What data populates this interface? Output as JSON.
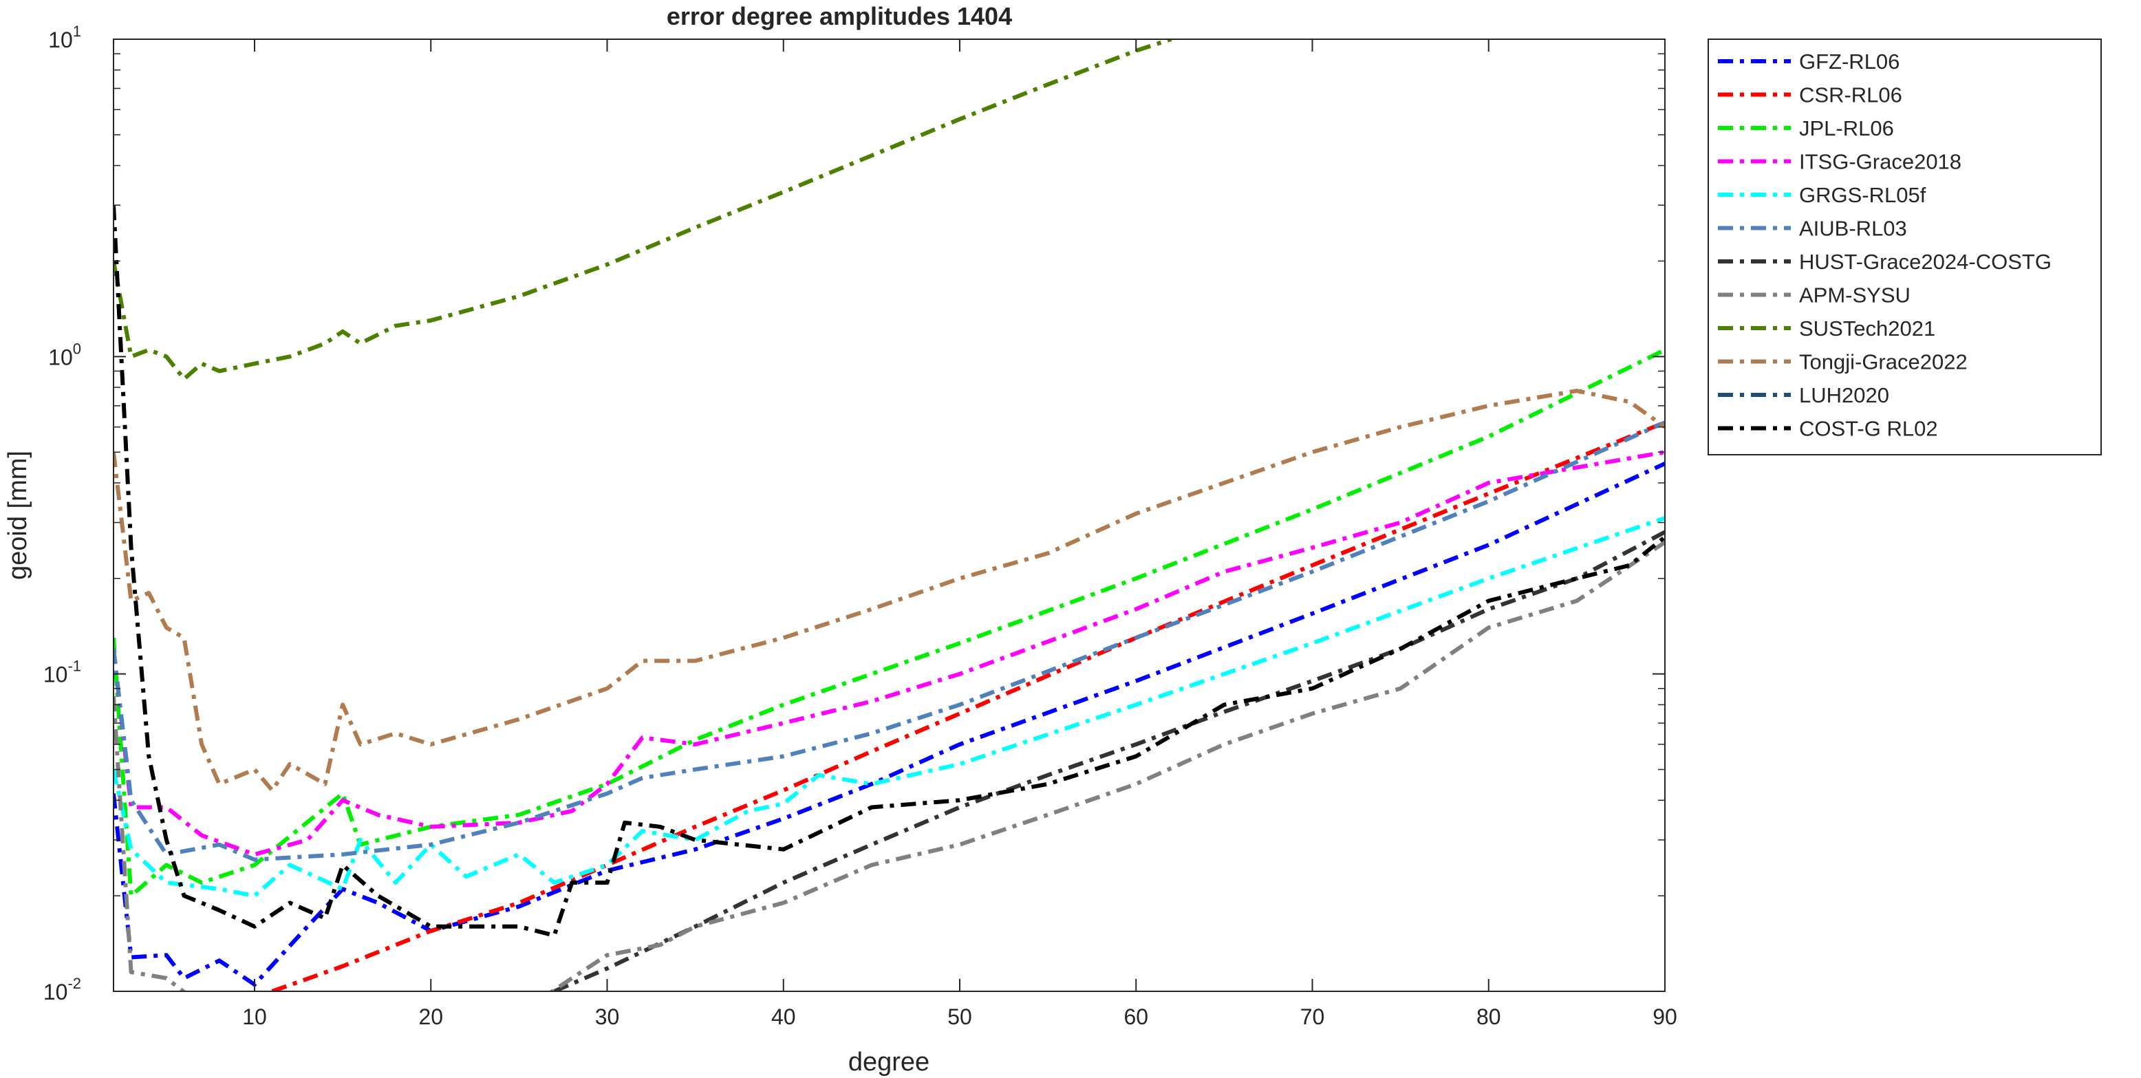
{
  "chart_data": {
    "type": "line",
    "title": "error degree amplitudes 1404",
    "xlabel": "degree",
    "ylabel": "geoid [mm]",
    "xlim": [
      2,
      90
    ],
    "ylim": [
      0.01,
      10
    ],
    "yscale": "log",
    "grid": false,
    "legend_position": "outside-right-top",
    "x_ticks": [
      10,
      20,
      30,
      40,
      50,
      60,
      70,
      80,
      90
    ],
    "y_ticks": [
      {
        "value": 0.01,
        "base": "10",
        "exp": "-2"
      },
      {
        "value": 0.1,
        "base": "10",
        "exp": "-1"
      },
      {
        "value": 1,
        "base": "10",
        "exp": "0"
      },
      {
        "value": 10,
        "base": "10",
        "exp": "1"
      }
    ],
    "series": [
      {
        "name": "GFZ-RL06",
        "color": "#0000ff",
        "dash": "dashdot",
        "points": [
          [
            2,
            0.042
          ],
          [
            3,
            0.0128
          ],
          [
            5,
            0.013
          ],
          [
            6,
            0.011
          ],
          [
            8,
            0.0125
          ],
          [
            10,
            0.0105
          ],
          [
            13,
            0.016
          ],
          [
            15,
            0.021
          ],
          [
            17,
            0.019
          ],
          [
            20,
            0.0155
          ],
          [
            25,
            0.0185
          ],
          [
            30,
            0.024
          ],
          [
            35,
            0.028
          ],
          [
            40,
            0.035
          ],
          [
            45,
            0.045
          ],
          [
            50,
            0.06
          ],
          [
            60,
            0.095
          ],
          [
            70,
            0.155
          ],
          [
            80,
            0.255
          ],
          [
            90,
            0.46
          ]
        ]
      },
      {
        "name": "CSR-RL06",
        "color": "#ff0000",
        "dash": "dashdot",
        "points": [
          [
            11,
            0.01
          ],
          [
            15,
            0.012
          ],
          [
            20,
            0.0155
          ],
          [
            25,
            0.019
          ],
          [
            30,
            0.025
          ],
          [
            35,
            0.033
          ],
          [
            40,
            0.043
          ],
          [
            45,
            0.057
          ],
          [
            50,
            0.075
          ],
          [
            60,
            0.13
          ],
          [
            70,
            0.22
          ],
          [
            80,
            0.37
          ],
          [
            90,
            0.62
          ]
        ]
      },
      {
        "name": "JPL-RL06",
        "color": "#00ee00",
        "dash": "dashdot",
        "points": [
          [
            2,
            0.13
          ],
          [
            3,
            0.02
          ],
          [
            5,
            0.025
          ],
          [
            7,
            0.022
          ],
          [
            10,
            0.025
          ],
          [
            15,
            0.042
          ],
          [
            16,
            0.029
          ],
          [
            20,
            0.033
          ],
          [
            25,
            0.036
          ],
          [
            30,
            0.045
          ],
          [
            35,
            0.062
          ],
          [
            40,
            0.08
          ],
          [
            45,
            0.1
          ],
          [
            50,
            0.125
          ],
          [
            60,
            0.2
          ],
          [
            70,
            0.33
          ],
          [
            80,
            0.56
          ],
          [
            90,
            1.05
          ]
        ]
      },
      {
        "name": "ITSG-Grace2018",
        "color": "#ff00ff",
        "dash": "dashdot",
        "points": [
          [
            2,
            0.12
          ],
          [
            3,
            0.038
          ],
          [
            5,
            0.038
          ],
          [
            7,
            0.031
          ],
          [
            10,
            0.027
          ],
          [
            13,
            0.03
          ],
          [
            15,
            0.04
          ],
          [
            17,
            0.036
          ],
          [
            20,
            0.033
          ],
          [
            25,
            0.034
          ],
          [
            28,
            0.037
          ],
          [
            30,
            0.045
          ],
          [
            32,
            0.063
          ],
          [
            35,
            0.06
          ],
          [
            40,
            0.07
          ],
          [
            45,
            0.082
          ],
          [
            50,
            0.1
          ],
          [
            60,
            0.16
          ],
          [
            65,
            0.21
          ],
          [
            70,
            0.25
          ],
          [
            75,
            0.3
          ],
          [
            80,
            0.4
          ],
          [
            90,
            0.5
          ]
        ]
      },
      {
        "name": "GRGS-RL05f",
        "color": "#00ffff",
        "dash": "dashdot",
        "points": [
          [
            2,
            0.05
          ],
          [
            3,
            0.028
          ],
          [
            5,
            0.022
          ],
          [
            8,
            0.021
          ],
          [
            10,
            0.02
          ],
          [
            12,
            0.025
          ],
          [
            15,
            0.021
          ],
          [
            16,
            0.03
          ],
          [
            18,
            0.022
          ],
          [
            20,
            0.029
          ],
          [
            22,
            0.023
          ],
          [
            25,
            0.027
          ],
          [
            27,
            0.022
          ],
          [
            30,
            0.025
          ],
          [
            32,
            0.032
          ],
          [
            35,
            0.03
          ],
          [
            38,
            0.037
          ],
          [
            40,
            0.039
          ],
          [
            42,
            0.048
          ],
          [
            45,
            0.045
          ],
          [
            50,
            0.052
          ],
          [
            60,
            0.08
          ],
          [
            70,
            0.125
          ],
          [
            80,
            0.2
          ],
          [
            90,
            0.31
          ]
        ]
      },
      {
        "name": "AIUB-RL03",
        "color": "#4f81bd",
        "dash": "dashdot",
        "points": [
          [
            2,
            0.12
          ],
          [
            3,
            0.04
          ],
          [
            5,
            0.027
          ],
          [
            8,
            0.029
          ],
          [
            10,
            0.026
          ],
          [
            15,
            0.027
          ],
          [
            20,
            0.029
          ],
          [
            25,
            0.034
          ],
          [
            30,
            0.042
          ],
          [
            32,
            0.047
          ],
          [
            35,
            0.05
          ],
          [
            40,
            0.055
          ],
          [
            45,
            0.065
          ],
          [
            50,
            0.08
          ],
          [
            60,
            0.13
          ],
          [
            70,
            0.21
          ],
          [
            80,
            0.35
          ],
          [
            90,
            0.62
          ]
        ]
      },
      {
        "name": "HUST-Grace2024-COSTG",
        "color": "#333333",
        "dash": "dashdot",
        "points": [
          [
            27,
            0.01
          ],
          [
            30,
            0.0118
          ],
          [
            35,
            0.016
          ],
          [
            40,
            0.022
          ],
          [
            45,
            0.029
          ],
          [
            50,
            0.038
          ],
          [
            55,
            0.048
          ],
          [
            60,
            0.06
          ],
          [
            65,
            0.076
          ],
          [
            70,
            0.095
          ],
          [
            75,
            0.12
          ],
          [
            80,
            0.16
          ],
          [
            85,
            0.2
          ],
          [
            90,
            0.28
          ]
        ]
      },
      {
        "name": "APM-SYSU",
        "color": "#808080",
        "dash": "dashdot",
        "points": [
          [
            2,
            0.085
          ],
          [
            3,
            0.0115
          ],
          [
            5,
            0.011
          ],
          [
            7,
            0.009
          ],
          [
            9,
            0.008
          ],
          [
            25,
            0.0085
          ],
          [
            28,
            0.011
          ],
          [
            30,
            0.013
          ],
          [
            33,
            0.014
          ],
          [
            35,
            0.016
          ],
          [
            40,
            0.019
          ],
          [
            45,
            0.025
          ],
          [
            50,
            0.029
          ],
          [
            55,
            0.036
          ],
          [
            60,
            0.045
          ],
          [
            65,
            0.06
          ],
          [
            70,
            0.075
          ],
          [
            75,
            0.09
          ],
          [
            80,
            0.14
          ],
          [
            85,
            0.17
          ],
          [
            90,
            0.26
          ]
        ]
      },
      {
        "name": "SUSTech2021",
        "color": "#4c8000",
        "dash": "dashdot",
        "points": [
          [
            2,
            2.0
          ],
          [
            3,
            1.0
          ],
          [
            4,
            1.05
          ],
          [
            5,
            1.0
          ],
          [
            6,
            0.85
          ],
          [
            7,
            0.95
          ],
          [
            8,
            0.9
          ],
          [
            10,
            0.95
          ],
          [
            12,
            1.0
          ],
          [
            14,
            1.1
          ],
          [
            15,
            1.2
          ],
          [
            16,
            1.1
          ],
          [
            18,
            1.25
          ],
          [
            20,
            1.3
          ],
          [
            25,
            1.55
          ],
          [
            30,
            1.95
          ],
          [
            35,
            2.55
          ],
          [
            40,
            3.3
          ],
          [
            45,
            4.3
          ],
          [
            50,
            5.6
          ],
          [
            55,
            7.2
          ],
          [
            60,
            9.2
          ],
          [
            62,
            10
          ]
        ]
      },
      {
        "name": "Tongji-Grace2022",
        "color": "#b07b4f",
        "dash": "dashdot",
        "points": [
          [
            2,
            0.5
          ],
          [
            3,
            0.17
          ],
          [
            4,
            0.18
          ],
          [
            5,
            0.14
          ],
          [
            6,
            0.13
          ],
          [
            7,
            0.06
          ],
          [
            8,
            0.045
          ],
          [
            10,
            0.05
          ],
          [
            11,
            0.043
          ],
          [
            12,
            0.052
          ],
          [
            14,
            0.045
          ],
          [
            15,
            0.08
          ],
          [
            16,
            0.06
          ],
          [
            18,
            0.065
          ],
          [
            20,
            0.06
          ],
          [
            25,
            0.072
          ],
          [
            30,
            0.09
          ],
          [
            32,
            0.11
          ],
          [
            35,
            0.11
          ],
          [
            40,
            0.13
          ],
          [
            45,
            0.16
          ],
          [
            50,
            0.2
          ],
          [
            55,
            0.24
          ],
          [
            60,
            0.32
          ],
          [
            65,
            0.4
          ],
          [
            70,
            0.5
          ],
          [
            75,
            0.6
          ],
          [
            80,
            0.7
          ],
          [
            85,
            0.78
          ],
          [
            88,
            0.72
          ],
          [
            90,
            0.6
          ]
        ]
      },
      {
        "name": "LUH2020",
        "color": "#1a4f7a",
        "dash": "dashdot",
        "points": []
      },
      {
        "name": "COST-G RL02",
        "color": "#000000",
        "dash": "dashdot",
        "points": [
          [
            2,
            3.0
          ],
          [
            3,
            0.25
          ],
          [
            4,
            0.055
          ],
          [
            5,
            0.03
          ],
          [
            6,
            0.02
          ],
          [
            7,
            0.019
          ],
          [
            8,
            0.018
          ],
          [
            10,
            0.016
          ],
          [
            12,
            0.019
          ],
          [
            14,
            0.017
          ],
          [
            15,
            0.025
          ],
          [
            17,
            0.02
          ],
          [
            20,
            0.016
          ],
          [
            25,
            0.016
          ],
          [
            27,
            0.015
          ],
          [
            28,
            0.022
          ],
          [
            30,
            0.022
          ],
          [
            31,
            0.034
          ],
          [
            33,
            0.033
          ],
          [
            35,
            0.03
          ],
          [
            40,
            0.028
          ],
          [
            45,
            0.038
          ],
          [
            50,
            0.04
          ],
          [
            55,
            0.045
          ],
          [
            60,
            0.055
          ],
          [
            65,
            0.08
          ],
          [
            70,
            0.09
          ],
          [
            75,
            0.12
          ],
          [
            80,
            0.17
          ],
          [
            85,
            0.2
          ],
          [
            88,
            0.22
          ],
          [
            90,
            0.27
          ]
        ]
      }
    ]
  }
}
